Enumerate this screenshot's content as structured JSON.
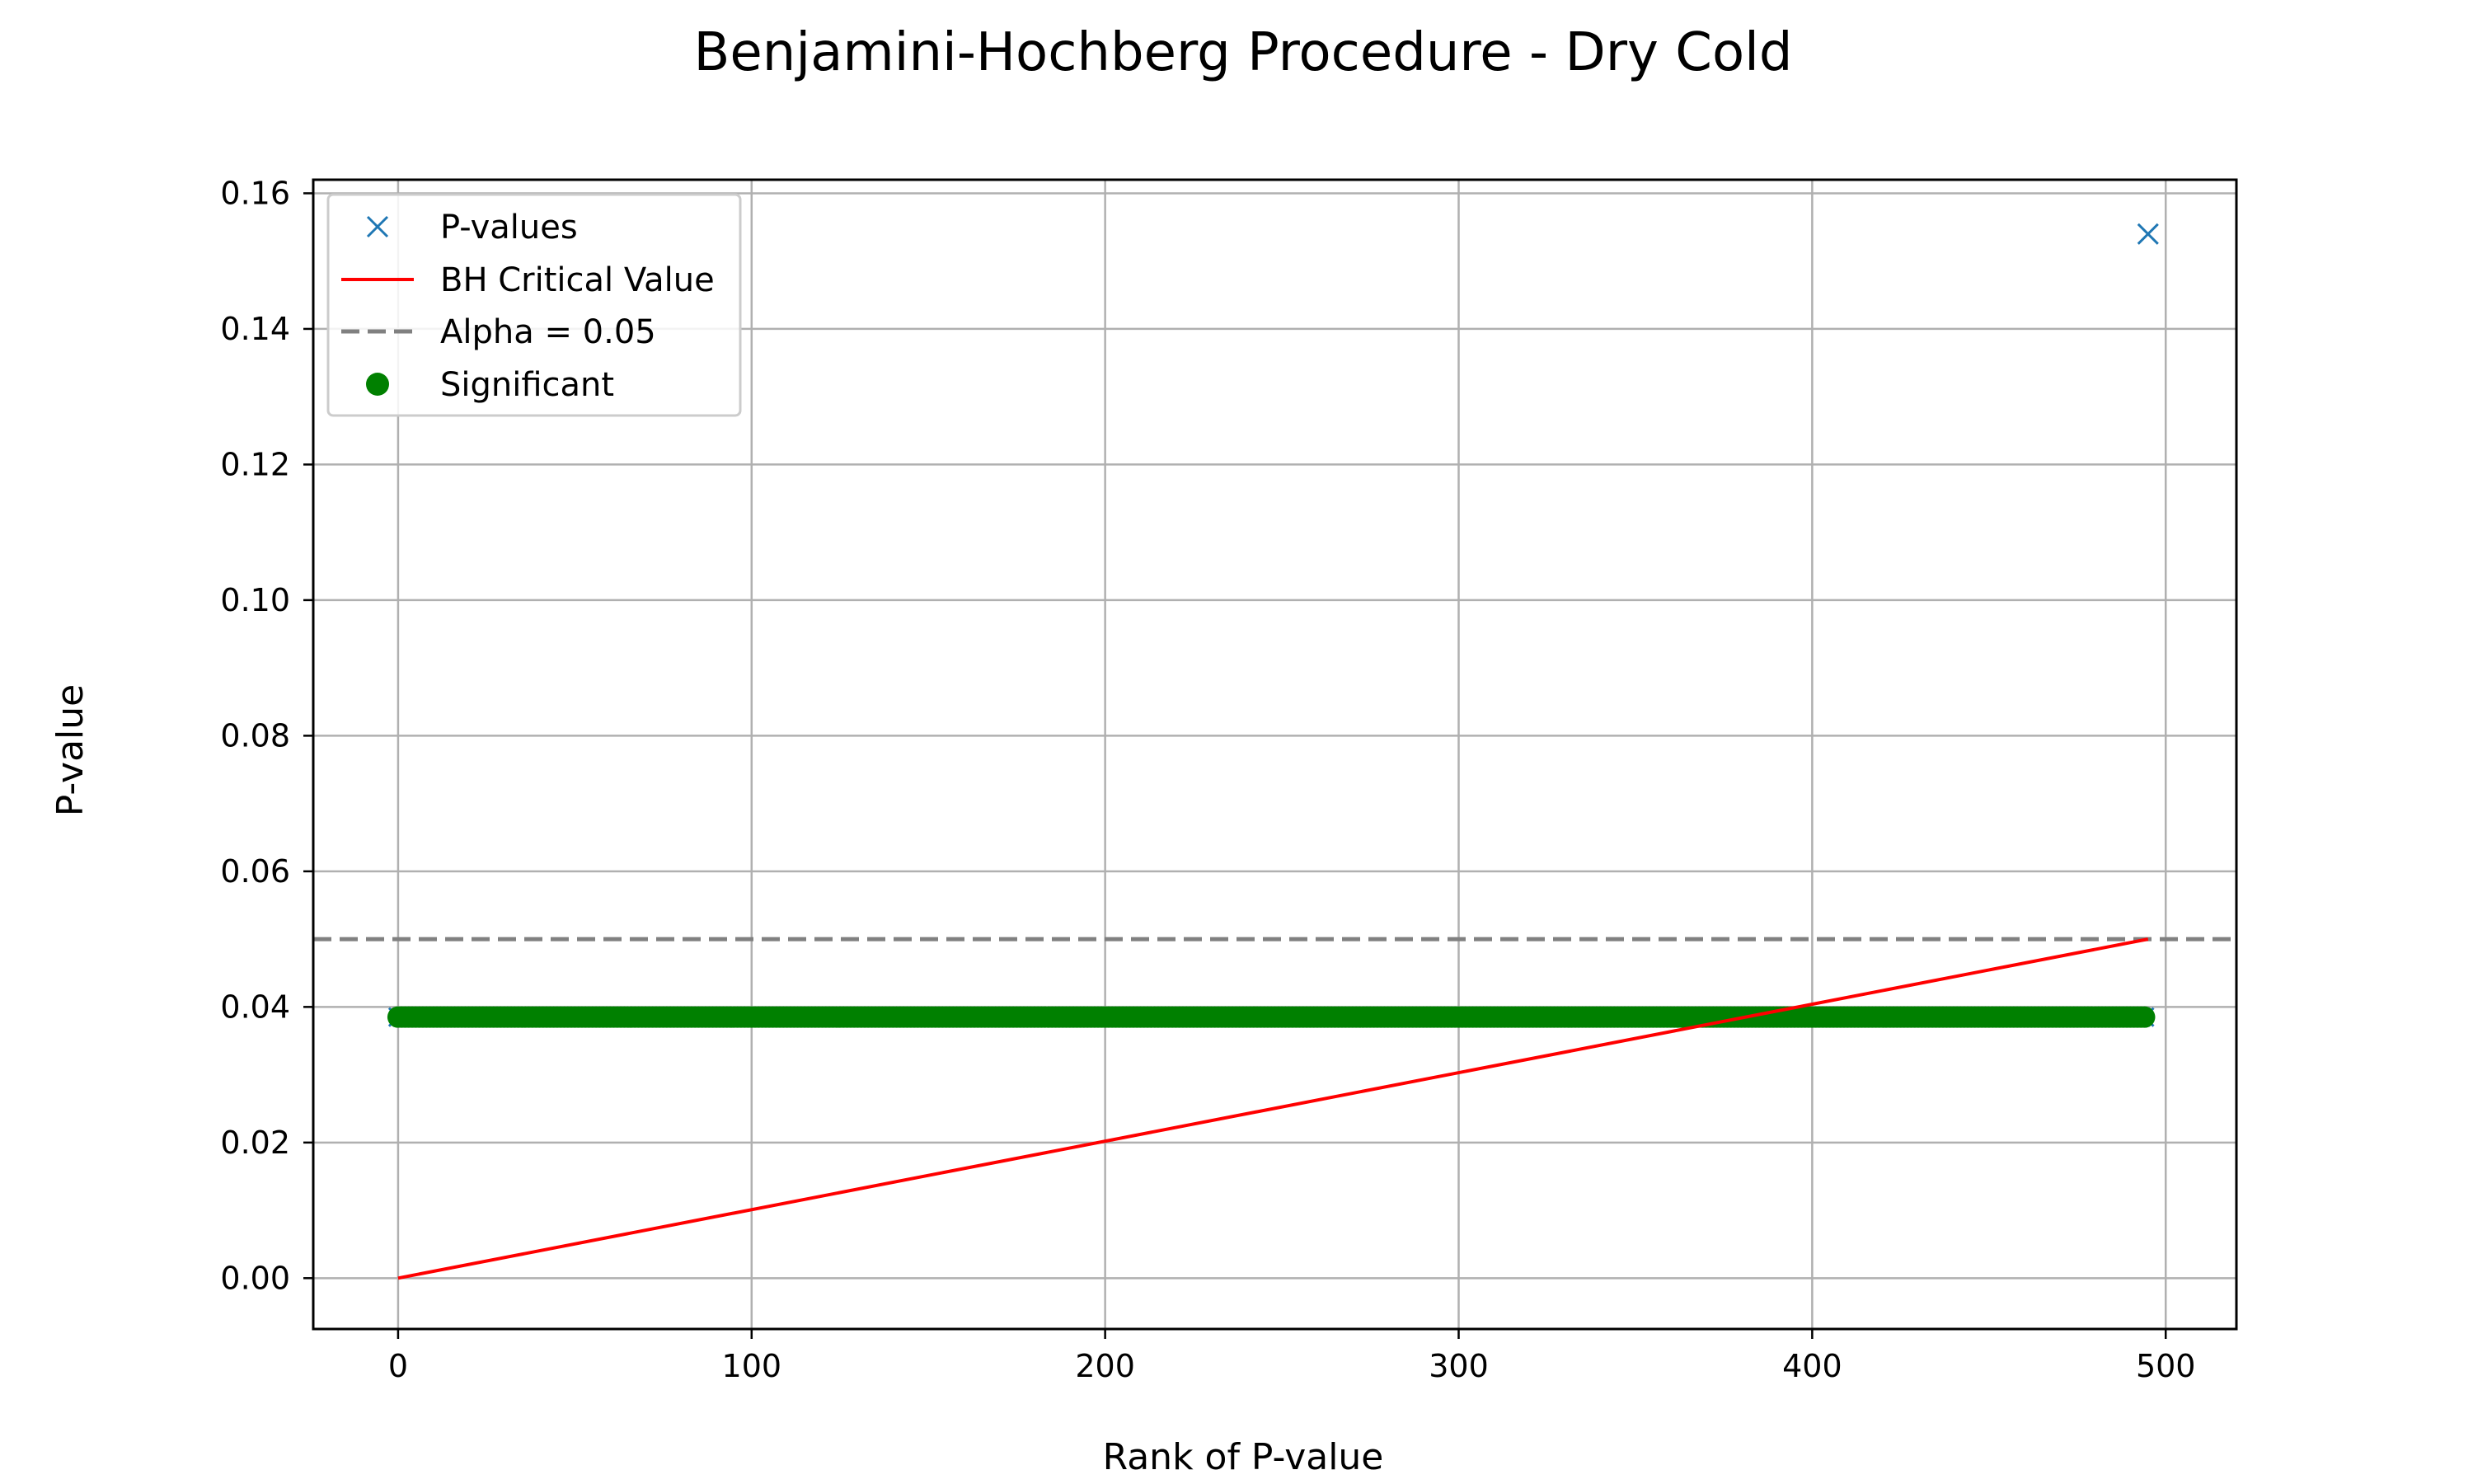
{
  "chart_data": {
    "type": "scatter",
    "title": "Benjamini-Hochberg Procedure - Dry Cold",
    "xlabel": "Rank of P-value",
    "ylabel": "P-value",
    "xlim": [
      -24,
      520
    ],
    "ylim": [
      -0.0075,
      0.162
    ],
    "x_ticks": [
      0,
      100,
      200,
      300,
      400,
      500
    ],
    "x_tick_labels": [
      "0",
      "100",
      "200",
      "300",
      "400",
      "500"
    ],
    "y_ticks": [
      0.0,
      0.02,
      0.04,
      0.06,
      0.08,
      0.1,
      0.12,
      0.14,
      0.16
    ],
    "y_tick_labels": [
      "0.00",
      "0.02",
      "0.04",
      "0.06",
      "0.08",
      "0.10",
      "0.12",
      "0.14",
      "0.16"
    ],
    "grid": true,
    "legend_position": "top-left",
    "n_ranks": 496,
    "series": [
      {
        "name": "P-values",
        "kind": "marker-x",
        "color": "#1f77b4",
        "x_range": [
          0,
          494
        ],
        "y_const": 0.0385,
        "outlier": {
          "x": 495,
          "y": 0.154
        }
      },
      {
        "name": "BH Critical Value",
        "kind": "line",
        "color": "#ff0000",
        "x": [
          0,
          495
        ],
        "y": [
          0.0,
          0.05
        ]
      },
      {
        "name": "Alpha = 0.05",
        "kind": "hline-dashed",
        "color": "#808080",
        "y": 0.05
      },
      {
        "name": "Significant",
        "kind": "marker-dot",
        "color": "#008000",
        "x_range": [
          0,
          494
        ],
        "y_const": 0.0385
      }
    ]
  }
}
